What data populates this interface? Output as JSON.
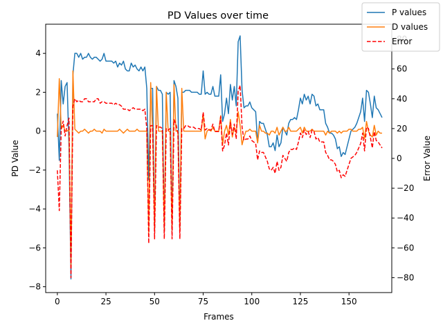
{
  "chart_data": {
    "type": "line",
    "title": "PD Values over time",
    "xlabel": "Frames",
    "ylabel": "PD Value",
    "ylabel_right": "Error Value",
    "xlim": [
      -6,
      172
    ],
    "ylim": [
      -8.3,
      5.5
    ],
    "ylim_right": [
      -90,
      90
    ],
    "x_ticks": [
      0,
      25,
      50,
      75,
      100,
      125,
      150
    ],
    "y_ticks": [
      -8,
      -6,
      -4,
      -2,
      0,
      2,
      4
    ],
    "y_ticks_right": [
      -80,
      -60,
      -40,
      -20,
      0,
      20,
      40,
      60,
      80
    ],
    "grid": false,
    "legend_position": "upper-right",
    "series": [
      {
        "name": "P values",
        "axis": "left",
        "color": "#1f77b4",
        "style": "solid",
        "values": [
          0.9,
          -1.5,
          2.6,
          1.4,
          2.3,
          2.5,
          -0.8,
          -7.6,
          2.9,
          4.0,
          4.0,
          3.8,
          4.0,
          3.7,
          3.8,
          3.8,
          4.0,
          3.8,
          3.7,
          3.8,
          3.8,
          3.7,
          3.6,
          3.7,
          4.0,
          3.6,
          3.6,
          3.6,
          3.6,
          3.5,
          3.6,
          3.3,
          3.5,
          3.4,
          3.6,
          3.2,
          3.1,
          3.1,
          3.5,
          3.3,
          3.4,
          3.2,
          3.1,
          3.3,
          3.1,
          3.3,
          2.2,
          -2.5,
          2.2,
          2.2,
          -5.1,
          2.3,
          2.1,
          2.1,
          1.9,
          -5.1,
          2.0,
          1.9,
          2.0,
          -5.1,
          2.6,
          2.3,
          1.7,
          -5.1,
          2.0,
          2.0,
          2.1,
          2.1,
          2.1,
          2.0,
          2.0,
          2.0,
          2.0,
          1.9,
          1.9,
          3.1,
          1.9,
          2.0,
          1.9,
          1.9,
          2.3,
          1.8,
          1.8,
          1.8,
          2.9,
          0.5,
          0.9,
          1.7,
          0.9,
          2.4,
          1.6,
          2.3,
          1.3,
          4.6,
          4.9,
          2.1,
          1.2,
          1.3,
          1.3,
          1.5,
          1.2,
          1.1,
          1.0,
          -0.6,
          0.5,
          0.4,
          0.4,
          0.1,
          -0.2,
          -0.8,
          -0.8,
          -0.6,
          -1.0,
          -0.2,
          -0.8,
          -0.6,
          0.2,
          0.0,
          -0.2,
          0.4,
          0.6,
          0.6,
          0.7,
          0.6,
          1.1,
          1.7,
          1.4,
          1.9,
          1.6,
          1.8,
          1.4,
          1.9,
          1.8,
          1.3,
          1.4,
          1.1,
          1.1,
          1.1,
          0.4,
          0.2,
          -0.1,
          -0.1,
          -0.2,
          -0.4,
          -0.9,
          -0.8,
          -1.3,
          -1.1,
          -1.2,
          -0.8,
          -0.4,
          0.0,
          0.1,
          0.2,
          0.4,
          0.7,
          1.0,
          1.7,
          0.5,
          2.1,
          2.0,
          1.4,
          0.7,
          1.8,
          1.2,
          1.1,
          0.9,
          0.7
        ]
      },
      {
        "name": "D values",
        "axis": "left",
        "color": "#ff7f0e",
        "style": "solid",
        "values": [
          -0.3,
          2.7,
          0.1,
          0.3,
          0.0,
          0.0,
          0.1,
          -6.9,
          3.1,
          0.1,
          0.0,
          -0.1,
          0.0,
          0.0,
          0.1,
          0.0,
          -0.1,
          0.0,
          0.0,
          0.1,
          0.0,
          0.0,
          0.0,
          -0.1,
          0.1,
          0.0,
          0.0,
          0.0,
          0.0,
          0.0,
          0.0,
          0.0,
          0.1,
          0.0,
          -0.1,
          0.0,
          0.1,
          0.0,
          0.0,
          0.0,
          0.0,
          0.1,
          0.0,
          0.0,
          0.0,
          0.0,
          0.0,
          -5.2,
          2.5,
          0.0,
          -5.1,
          2.3,
          0.0,
          0.0,
          0.0,
          -5.1,
          2.0,
          0.0,
          0.0,
          -5.1,
          2.4,
          0.0,
          0.0,
          -5.1,
          2.2,
          0.0,
          0.0,
          0.0,
          0.0,
          0.0,
          0.0,
          0.0,
          0.0,
          0.0,
          0.0,
          0.9,
          -0.4,
          0.0,
          0.1,
          0.0,
          0.2,
          0.0,
          0.0,
          0.0,
          0.8,
          -0.7,
          0.0,
          0.3,
          -0.2,
          0.6,
          -0.3,
          0.2,
          -0.1,
          1.0,
          0.3,
          -0.7,
          -0.3,
          0.0,
          0.0,
          0.1,
          0.0,
          0.0,
          0.0,
          -0.6,
          0.3,
          0.0,
          0.0,
          -0.1,
          -0.1,
          -0.2,
          0.0,
          0.0,
          -0.1,
          0.2,
          -0.2,
          0.0,
          0.2,
          0.0,
          0.0,
          0.2,
          0.0,
          0.0,
          0.0,
          0.0,
          0.1,
          0.2,
          -0.1,
          0.2,
          0.0,
          0.0,
          0.0,
          0.1,
          0.0,
          0.0,
          0.0,
          0.0,
          0.0,
          0.0,
          -0.2,
          0.0,
          -0.1,
          0.0,
          0.0,
          0.0,
          -0.1,
          0.0,
          -0.1,
          0.0,
          0.0,
          0.0,
          0.1,
          0.1,
          0.0,
          0.0,
          0.0,
          0.1,
          0.1,
          0.2,
          -0.4,
          0.5,
          0.0,
          -0.2,
          -0.3,
          0.3,
          -0.2,
          0.0,
          -0.1,
          -0.1
        ]
      },
      {
        "name": "Error",
        "axis": "right",
        "color": "#ff0000",
        "style": "dashed",
        "values": [
          -8,
          -35,
          20,
          25,
          15,
          22,
          27,
          -80,
          35,
          40,
          38,
          39,
          38,
          38,
          40,
          40,
          38,
          38,
          38,
          38,
          40,
          40,
          37,
          38,
          38,
          37,
          37,
          37,
          37,
          36,
          37,
          36,
          36,
          35,
          33,
          33,
          33,
          32,
          33,
          34,
          33,
          33,
          33,
          33,
          32,
          33,
          20,
          -57,
          22,
          22,
          -54,
          22,
          21,
          21,
          20,
          -54,
          20,
          19,
          20,
          -54,
          26,
          23,
          17,
          -54,
          20,
          20,
          22,
          22,
          21,
          21,
          21,
          20,
          20,
          20,
          19,
          31,
          19,
          20,
          19,
          19,
          23,
          18,
          18,
          18,
          28,
          5,
          9,
          17,
          9,
          24,
          16,
          23,
          13,
          45,
          49,
          21,
          12,
          13,
          13,
          15,
          12,
          11,
          10,
          -1,
          5,
          4,
          4,
          1,
          -2,
          -7,
          -8,
          -6,
          -10,
          -2,
          -8,
          -6,
          2,
          0,
          -2,
          4,
          6,
          6,
          7,
          6,
          11,
          17,
          14,
          19,
          16,
          18,
          14,
          19,
          18,
          13,
          14,
          11,
          11,
          11,
          4,
          2,
          -1,
          -1,
          -2,
          -4,
          -9,
          -8,
          -13,
          -11,
          -12,
          -8,
          -4,
          0,
          1,
          2,
          4,
          7,
          10,
          17,
          5,
          21,
          20,
          14,
          7,
          18,
          12,
          11,
          9,
          7
        ]
      }
    ]
  }
}
